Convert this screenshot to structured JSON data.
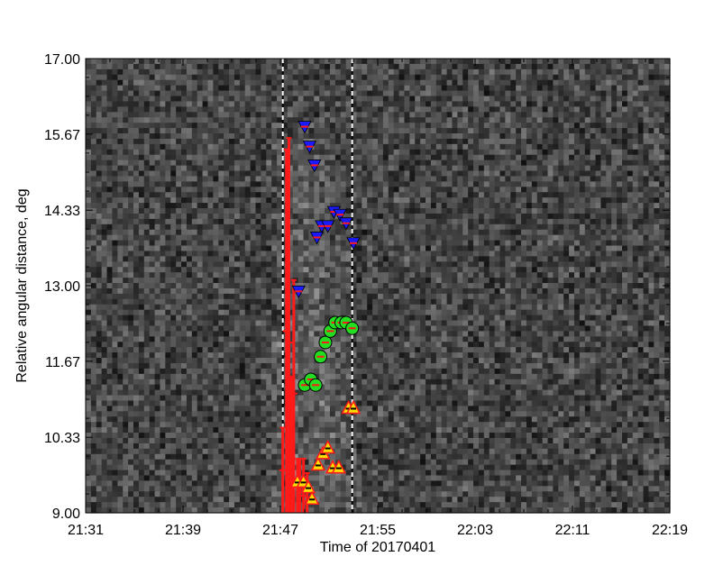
{
  "chart_data": {
    "type": "scatter",
    "title": "",
    "xlabel": "Time of 20170401",
    "ylabel": "Relative angular distance, deg",
    "x_unit": "time",
    "xlim": [
      "21:31",
      "22:19"
    ],
    "ylim": [
      9.0,
      17.0
    ],
    "x_ticks": [
      "21:31",
      "21:39",
      "21:47",
      "21:55",
      "22:03",
      "22:11",
      "22:19"
    ],
    "y_ticks": [
      "9.00",
      "10.33",
      "11.67",
      "13.00",
      "14.33",
      "15.67",
      "17.00"
    ],
    "background": "grayscale noise map with brighter diagonal feature",
    "vertical_markers": {
      "x": [
        "21:47.2",
        "21:52.9"
      ],
      "style": "dashed",
      "colors": [
        "#ffffff",
        "#000000"
      ]
    },
    "legend": "none",
    "grid": false,
    "series": [
      {
        "marker": "triangle-down",
        "fill": "#1a1aff",
        "edge": "#ff1a1a",
        "points": [
          {
            "x": "21:49.0",
            "y": 15.8
          },
          {
            "x": "21:49.4",
            "y": 15.45
          },
          {
            "x": "21:49.8",
            "y": 15.12
          },
          {
            "x": "21:48.5",
            "y": 12.9
          },
          {
            "x": "21:50.0",
            "y": 13.85
          },
          {
            "x": "21:50.4",
            "y": 14.05
          },
          {
            "x": "21:50.9",
            "y": 14.05
          },
          {
            "x": "21:51.4",
            "y": 14.3
          },
          {
            "x": "21:51.9",
            "y": 14.25
          },
          {
            "x": "21:52.4",
            "y": 14.1
          },
          {
            "x": "21:53.0",
            "y": 13.75
          }
        ]
      },
      {
        "marker": "circle",
        "fill": "#22dd22",
        "edge": "#000000",
        "inner": "#ff1a1a",
        "points": [
          {
            "x": "21:49.0",
            "y": 11.25
          },
          {
            "x": "21:49.5",
            "y": 11.35
          },
          {
            "x": "21:49.9",
            "y": 11.25
          },
          {
            "x": "21:50.3",
            "y": 11.75
          },
          {
            "x": "21:50.7",
            "y": 12.0
          },
          {
            "x": "21:51.1",
            "y": 12.2
          },
          {
            "x": "21:51.5",
            "y": 12.35
          },
          {
            "x": "21:52.0",
            "y": 12.35
          },
          {
            "x": "21:52.4",
            "y": 12.35
          },
          {
            "x": "21:52.9",
            "y": 12.25
          }
        ]
      },
      {
        "marker": "triangle-up",
        "fill": "#ffdd00",
        "edge": "#ff1a1a",
        "inner": "#000000",
        "points": [
          {
            "x": "21:48.4",
            "y": 9.55
          },
          {
            "x": "21:48.9",
            "y": 9.55
          },
          {
            "x": "21:49.3",
            "y": 9.45
          },
          {
            "x": "21:49.6",
            "y": 9.25
          },
          {
            "x": "21:50.1",
            "y": 9.85
          },
          {
            "x": "21:50.5",
            "y": 10.05
          },
          {
            "x": "21:50.9",
            "y": 10.15
          },
          {
            "x": "21:51.3",
            "y": 9.8
          },
          {
            "x": "21:51.8",
            "y": 9.8
          },
          {
            "x": "21:52.6",
            "y": 10.85
          },
          {
            "x": "21:53.0",
            "y": 10.85
          }
        ]
      },
      {
        "marker": "error-bar",
        "color": "#ff1a1a",
        "points": [
          {
            "x": "21:47.2",
            "y": 9.75,
            "ylow": 9.0,
            "yhigh": 10.5
          },
          {
            "x": "21:47.5",
            "y": 12.2,
            "ylow": 9.0,
            "yhigh": 15.4
          },
          {
            "x": "21:47.7",
            "y": 12.0,
            "ylow": 9.0,
            "yhigh": 15.6
          },
          {
            "x": "21:47.9",
            "y": 10.0,
            "ylow": 9.0,
            "yhigh": 11.4
          },
          {
            "x": "21:48.1",
            "y": 11.1,
            "ylow": 9.0,
            "yhigh": 13.1
          },
          {
            "x": "21:48.4",
            "y": 9.5,
            "ylow": 9.0,
            "yhigh": 9.95
          },
          {
            "x": "21:48.6",
            "y": 9.4,
            "ylow": 9.0,
            "yhigh": 9.95
          },
          {
            "x": "21:48.9",
            "y": 9.3,
            "ylow": 9.0,
            "yhigh": 9.95
          },
          {
            "x": "21:49.2",
            "y": 9.2,
            "ylow": 9.0,
            "yhigh": 9.7
          }
        ]
      }
    ]
  }
}
